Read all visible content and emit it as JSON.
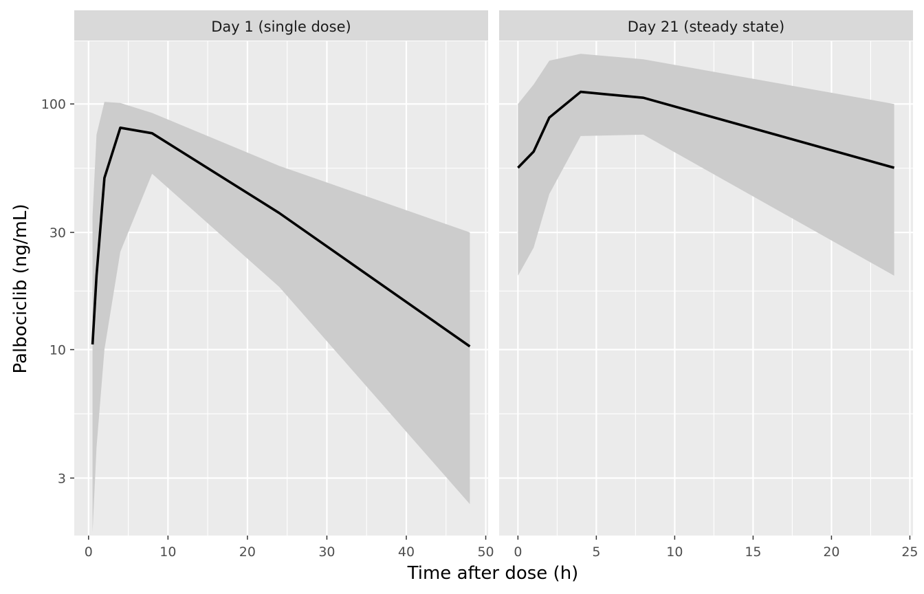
{
  "chart_data": {
    "type": "line",
    "xlabel": "Time after dose (h)",
    "ylabel": "Palbociclib (ng/mL)",
    "y_scale": "log10",
    "ylim": [
      1.75,
      180
    ],
    "y_ticks": [
      3,
      10,
      30,
      100
    ],
    "grid": true,
    "legend": "none",
    "colors": {
      "panel_bg": "#EBEBEB",
      "strip_bg": "#D9D9D9",
      "grid": "#FFFFFF",
      "ribbon": "#CCCCCC",
      "line": "#000000"
    },
    "panels": [
      {
        "strip": "Day 1 (single dose)",
        "xlim": [
          -1.8,
          50.3
        ],
        "x_ticks": [
          0,
          10,
          20,
          30,
          40,
          50
        ],
        "x": [
          0.5,
          1,
          2,
          4,
          8,
          24,
          48
        ],
        "median": [
          10.5,
          20,
          50,
          80,
          76,
          36,
          10.3
        ],
        "lower": [
          1.8,
          4,
          10,
          25,
          52,
          18,
          2.35
        ],
        "upper": [
          35,
          75,
          102,
          101,
          92,
          56,
          30
        ]
      },
      {
        "strip": "Day 21 (steady state)",
        "xlim": [
          -1.2,
          25.2
        ],
        "x_ticks": [
          0,
          5,
          10,
          15,
          20,
          25
        ],
        "x": [
          0,
          1,
          2,
          4,
          8,
          24
        ],
        "median": [
          55,
          64,
          88,
          112,
          106,
          55
        ],
        "lower": [
          20,
          26,
          43,
          74,
          75,
          20
        ],
        "upper": [
          100,
          120,
          150,
          160,
          152,
          100
        ]
      }
    ]
  }
}
